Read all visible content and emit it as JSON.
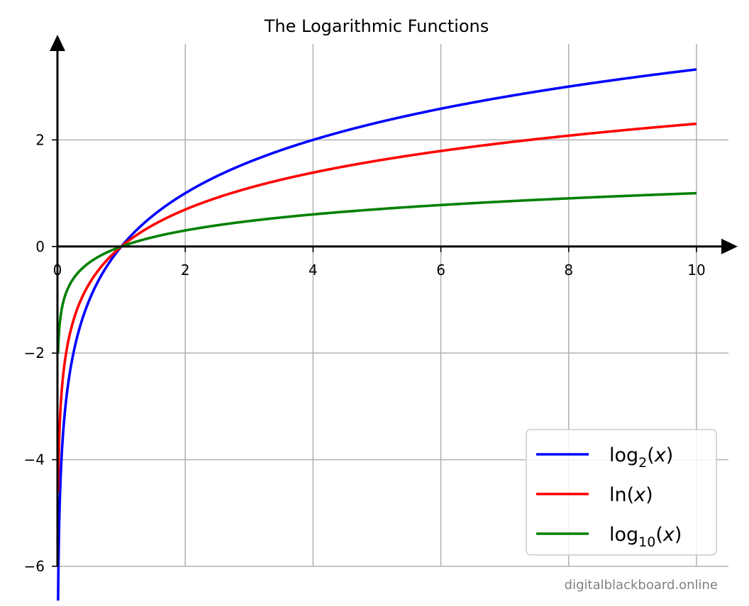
{
  "chart_data": {
    "type": "line",
    "title": "The Logarithmic Functions",
    "xlabel": "",
    "ylabel": "",
    "xlim": [
      0,
      10.5
    ],
    "ylim": [
      -6,
      3.8
    ],
    "xticks": [
      0,
      2,
      4,
      6,
      8,
      10
    ],
    "yticks": [
      -6,
      -4,
      -2,
      0,
      2
    ],
    "xtick_labels": [
      "0",
      "2",
      "4",
      "6",
      "8",
      "10"
    ],
    "ytick_labels": [
      "−6",
      "−4",
      "−2",
      "0",
      "2"
    ],
    "grid": true,
    "legend_position": "bottom-right",
    "x_domain": [
      0.01,
      10
    ],
    "series": [
      {
        "name": "log",
        "subscript": "2",
        "arg": "(x)",
        "base": 2,
        "color": "#0000ff",
        "x": [
          0.01,
          0.05,
          0.1,
          0.25,
          0.5,
          1,
          2,
          4,
          6,
          8,
          10
        ],
        "values": [
          -6.64,
          -4.32,
          -3.32,
          -2.0,
          -1.0,
          0,
          1.0,
          2.0,
          2.58,
          3.0,
          3.32
        ]
      },
      {
        "name": "ln",
        "subscript": "",
        "arg": "(x)",
        "base": 2.718281828,
        "color": "#ff0000",
        "x": [
          0.01,
          0.05,
          0.1,
          0.25,
          0.5,
          1,
          2,
          4,
          6,
          8,
          10
        ],
        "values": [
          -4.61,
          -3.0,
          -2.3,
          -1.39,
          -0.69,
          0,
          0.69,
          1.39,
          1.79,
          2.08,
          2.3
        ]
      },
      {
        "name": "log",
        "subscript": "10",
        "arg": "(x)",
        "base": 10,
        "color": "#008000",
        "x": [
          0.01,
          0.05,
          0.1,
          0.25,
          0.5,
          1,
          2,
          4,
          6,
          8,
          10
        ],
        "values": [
          -2.0,
          -1.3,
          -1.0,
          -0.6,
          -0.3,
          0,
          0.3,
          0.6,
          0.78,
          0.9,
          1.0
        ]
      }
    ]
  },
  "watermark": "digitalblackboard.online"
}
